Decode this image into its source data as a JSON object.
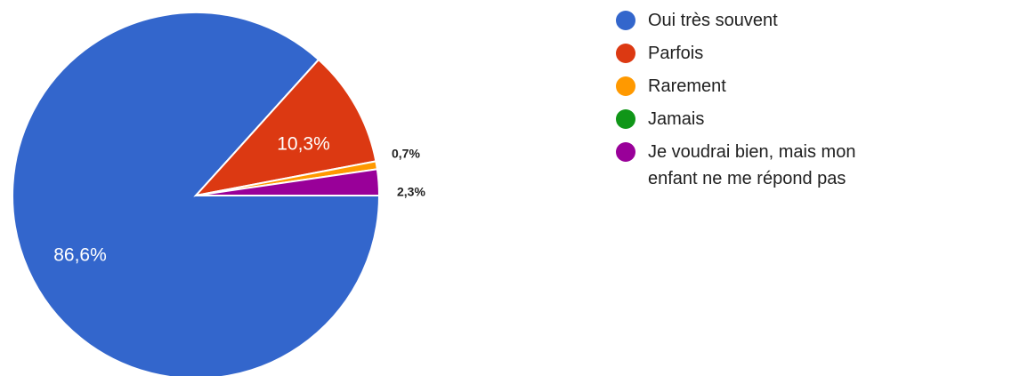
{
  "chart_data": {
    "type": "pie",
    "slices": [
      {
        "label": "Oui très souvent",
        "value": 86.6,
        "display": "86,6%",
        "color": "#3366cc"
      },
      {
        "label": "Parfois",
        "value": 10.3,
        "display": "10,3%",
        "color": "#dc3912"
      },
      {
        "label": "Rarement",
        "value": 0.7,
        "display": "0,7%",
        "color": "#ff9900"
      },
      {
        "label": "Jamais",
        "value": 0,
        "display": "",
        "color": "#109618"
      },
      {
        "label": "Je voudrai bien, mais mon enfant ne me répond pas",
        "value": 2.3,
        "display": "2,3%",
        "color": "#990099"
      }
    ],
    "legend_position": "right"
  }
}
